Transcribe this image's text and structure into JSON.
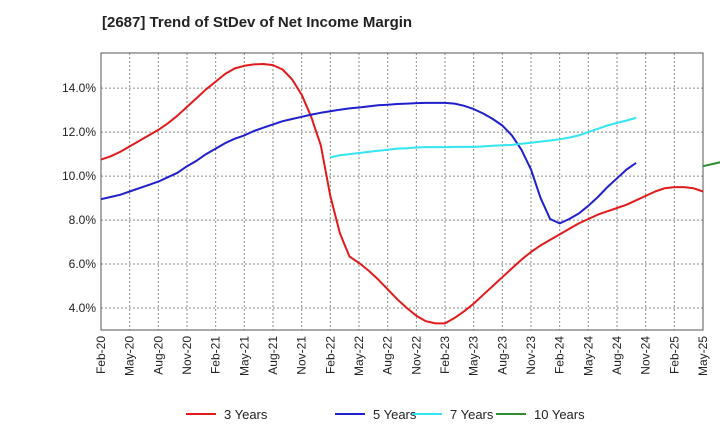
{
  "chart_data": {
    "type": "line",
    "title": "[2687]  Trend of StDev of Net Income Margin",
    "xlabel": "",
    "ylabel": "",
    "x_ticks": [
      "Feb-20",
      "May-20",
      "Aug-20",
      "Nov-20",
      "Feb-21",
      "May-21",
      "Aug-21",
      "Nov-21",
      "Feb-22",
      "May-22",
      "Aug-22",
      "Nov-22",
      "Feb-23",
      "May-23",
      "Aug-23",
      "Nov-23",
      "Feb-24",
      "May-24",
      "Aug-24",
      "Nov-24",
      "Feb-25",
      "May-25"
    ],
    "y_ticks": [
      "4.0%",
      "6.0%",
      "8.0%",
      "10.0%",
      "12.0%",
      "14.0%"
    ],
    "y_tick_values": [
      4,
      6,
      8,
      10,
      12,
      14
    ],
    "ylim": [
      3.0,
      15.6
    ],
    "grid": true,
    "legend_position": "bottom",
    "series": [
      {
        "name": "3 Years",
        "color": "#e31a1c",
        "x_start": 0,
        "values": [
          10.75,
          10.9,
          11.1,
          11.35,
          11.6,
          11.85,
          12.1,
          12.4,
          12.75,
          13.15,
          13.55,
          13.95,
          14.3,
          14.65,
          14.9,
          15.02,
          15.08,
          15.1,
          15.05,
          14.85,
          14.4,
          13.7,
          12.7,
          11.4,
          9.1,
          7.4,
          6.35,
          6.05,
          5.7,
          5.3,
          4.85,
          4.4,
          4.0,
          3.65,
          3.4,
          3.3,
          3.3,
          3.55,
          3.85,
          4.2,
          4.6,
          5.0,
          5.4,
          5.8,
          6.2,
          6.55,
          6.85,
          7.1,
          7.35,
          7.6,
          7.85,
          8.05,
          8.25,
          8.4,
          8.55,
          8.7,
          8.9,
          9.1,
          9.3,
          9.45,
          9.5,
          9.5,
          9.45,
          9.3
        ]
      },
      {
        "name": "5 Years",
        "color": "#1f1fcc",
        "x_start": 0,
        "values": [
          8.95,
          9.05,
          9.15,
          9.3,
          9.45,
          9.6,
          9.75,
          9.95,
          10.15,
          10.45,
          10.7,
          11.0,
          11.25,
          11.5,
          11.7,
          11.85,
          12.05,
          12.2,
          12.35,
          12.5,
          12.6,
          12.7,
          12.8,
          12.88,
          12.95,
          13.02,
          13.08,
          13.12,
          13.17,
          13.22,
          13.25,
          13.28,
          13.3,
          13.32,
          13.33,
          13.33,
          13.33,
          13.3,
          13.2,
          13.05,
          12.85,
          12.6,
          12.3,
          11.85,
          11.2,
          10.3,
          9.0,
          8.05,
          7.85,
          8.05,
          8.3,
          8.65,
          9.05,
          9.5,
          9.9,
          10.3,
          10.6
        ]
      },
      {
        "name": "7 Years",
        "color": "#33e5f0",
        "x_start": 24,
        "values": [
          10.85,
          10.95,
          11.0,
          11.05,
          11.1,
          11.15,
          11.2,
          11.25,
          11.27,
          11.3,
          11.32,
          11.32,
          11.32,
          11.33,
          11.33,
          11.33,
          11.35,
          11.38,
          11.4,
          11.42,
          11.47,
          11.52,
          11.57,
          11.62,
          11.68,
          11.75,
          11.85,
          12.0,
          12.15,
          12.3,
          12.42,
          12.53,
          12.65
        ]
      },
      {
        "name": "10 Years",
        "color": "#2e8b2e",
        "x_start": 63,
        "values": [
          10.45,
          10.55,
          10.65
        ]
      }
    ]
  }
}
